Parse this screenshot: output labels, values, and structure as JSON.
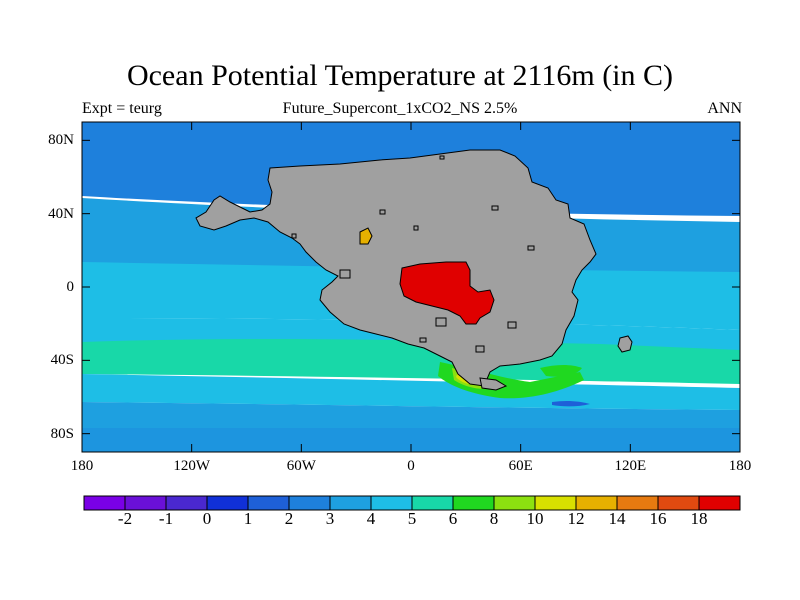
{
  "title": "Ocean Potential Temperature at 2116m (in C)",
  "subtitle_left": "Expt = teurg",
  "subtitle_center": "Future_Supercont_1xCO2_NS 2.5%",
  "subtitle_right": "ANN",
  "map": {
    "projection": "cylindrical equidistant",
    "lon_range": [
      -180,
      180
    ],
    "lat_range": [
      -90,
      90
    ],
    "land_color": "#a0a0a0",
    "lon_ticks": [
      {
        "value": -180,
        "label": "180"
      },
      {
        "value": -120,
        "label": "120W"
      },
      {
        "value": -60,
        "label": "60W"
      },
      {
        "value": 0,
        "label": "0"
      },
      {
        "value": 60,
        "label": "60E"
      },
      {
        "value": 120,
        "label": "120E"
      },
      {
        "value": 180,
        "label": "180"
      }
    ],
    "lat_ticks": [
      {
        "value": 80,
        "label": "80N"
      },
      {
        "value": 40,
        "label": "40N"
      },
      {
        "value": 0,
        "label": "0"
      },
      {
        "value": -40,
        "label": "40S"
      },
      {
        "value": -80,
        "label": "80S"
      }
    ]
  },
  "colorbar": {
    "colors": [
      "#7a00e6",
      "#6a10d8",
      "#4a28d0",
      "#1030d8",
      "#1e60d8",
      "#1e80dc",
      "#1ea0e0",
      "#1ebee6",
      "#18d8a8",
      "#20d820",
      "#8ce010",
      "#d8e000",
      "#e6b000",
      "#e67a10",
      "#e04a10",
      "#e00000"
    ],
    "labels": [
      "-2",
      "-1",
      "0",
      "1",
      "2",
      "3",
      "4",
      "5",
      "6",
      "8",
      "10",
      "12",
      "14",
      "16",
      "18"
    ]
  }
}
